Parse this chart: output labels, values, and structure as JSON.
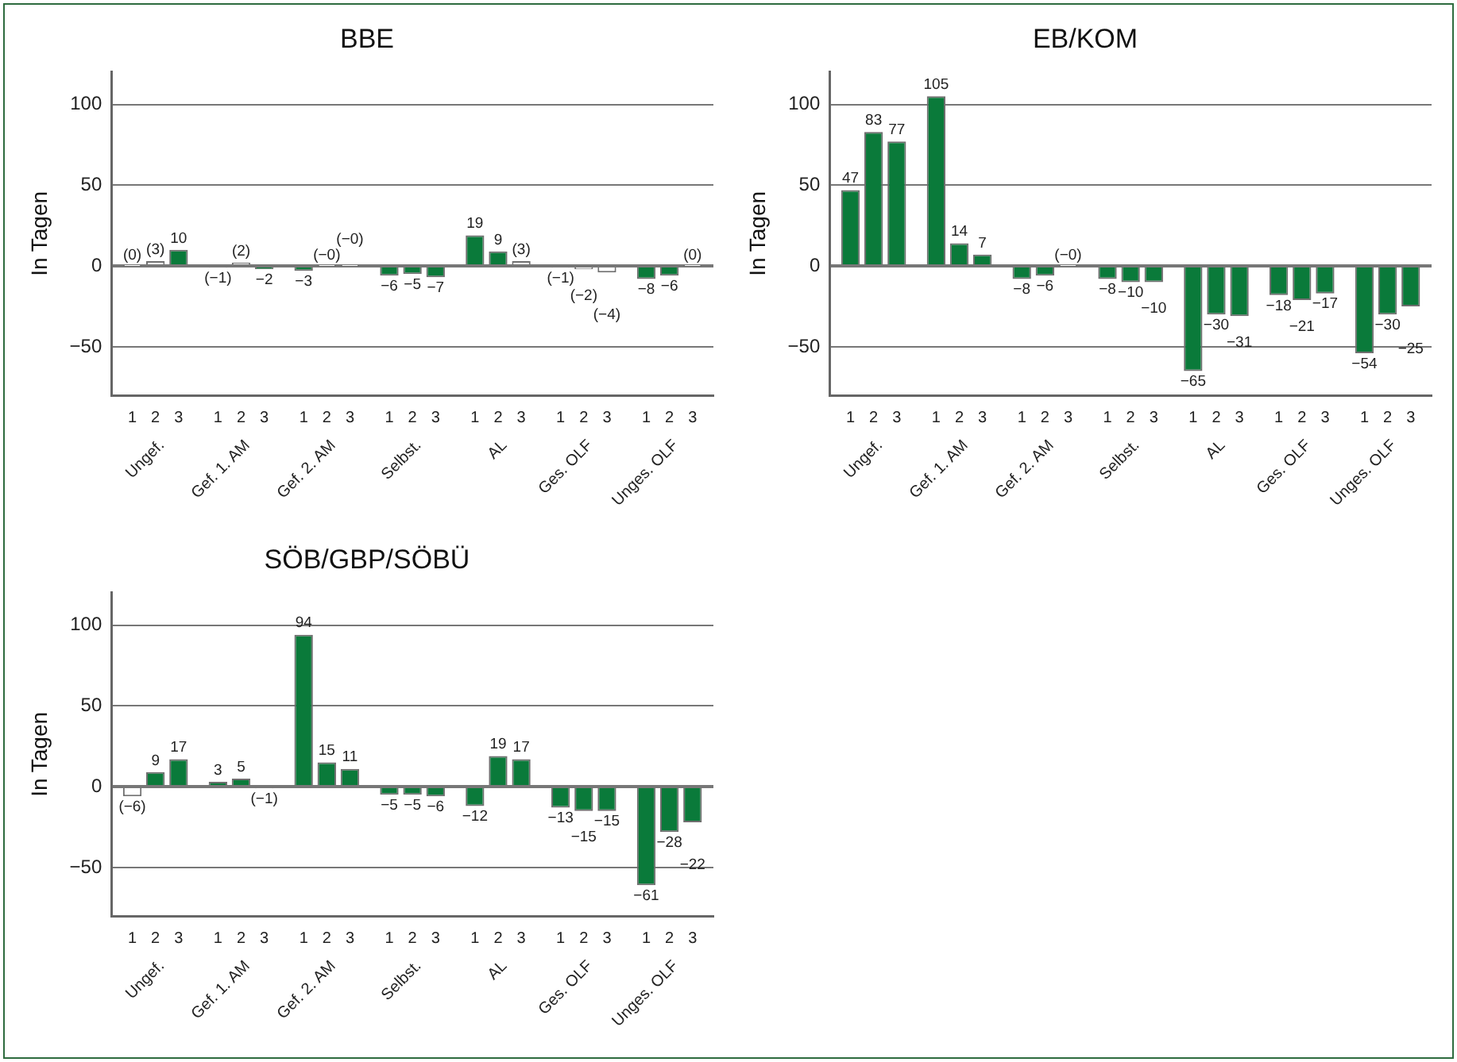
{
  "chart_data": [
    {
      "type": "bar",
      "title": "BBE",
      "ylabel": "In Tagen",
      "categories": [
        "1",
        "2",
        "3",
        "1",
        "2",
        "3",
        "1",
        "2",
        "3",
        "1",
        "2",
        "3",
        "1",
        "2",
        "3",
        "1",
        "2",
        "3",
        "1",
        "2",
        "3"
      ],
      "annotations": [
        "Ungef.",
        "Gef. 1. AM",
        "Gef. 2. AM",
        "Selbst.",
        "AL",
        "Ges. OLF",
        "Unges. OLF"
      ],
      "ylim": [
        -80,
        120
      ],
      "yticks": [
        -50,
        0,
        50,
        100
      ],
      "grid": "y",
      "values": [
        0,
        3,
        10,
        -1,
        2,
        -2,
        -3,
        0,
        0,
        -6,
        -5,
        -7,
        19,
        9,
        3,
        -1,
        -2,
        -4,
        -8,
        -6,
        0
      ],
      "colors": [
        "#ffffff",
        "#ffffff",
        "#0a7a3a",
        "#ffffff",
        "#ffffff",
        "#0a7a3a",
        "#0a7a3a",
        "#ffffff",
        "#ffffff",
        "#0a7a3a",
        "#0a7a3a",
        "#0a7a3a",
        "#0a7a3a",
        "#0a7a3a",
        "#ffffff",
        "#ffffff",
        "#ffffff",
        "#ffffff",
        "#0a7a3a",
        "#0a7a3a",
        "#ffffff"
      ],
      "value_labels": [
        "(0)",
        "(3)",
        "10",
        "(−1)",
        "(2)",
        "−2",
        "−3",
        "(−0)",
        "(−0)",
        "−6",
        "−5",
        "−7",
        "19",
        "9",
        "(3)",
        "(−1)",
        "(−2)",
        "(−4)",
        "−8",
        "−6",
        "(0)"
      ]
    },
    {
      "type": "bar",
      "title": "EB/KOM",
      "ylabel": "In Tagen",
      "categories": [
        "1",
        "2",
        "3",
        "1",
        "2",
        "3",
        "1",
        "2",
        "3",
        "1",
        "2",
        "3",
        "1",
        "2",
        "3",
        "1",
        "2",
        "3",
        "1",
        "2",
        "3"
      ],
      "annotations": [
        "Ungef.",
        "Gef. 1. AM",
        "Gef. 2. AM",
        "Selbst.",
        "AL",
        "Ges. OLF",
        "Unges. OLF"
      ],
      "ylim": [
        -80,
        120
      ],
      "yticks": [
        -50,
        0,
        50,
        100
      ],
      "grid": "y",
      "values": [
        47,
        83,
        77,
        105,
        14,
        7,
        -8,
        -6,
        0,
        -8,
        -10,
        -10,
        -65,
        -30,
        -31,
        -18,
        -21,
        -17,
        -54,
        -30,
        -25
      ],
      "colors": [
        "#0a7a3a",
        "#0a7a3a",
        "#0a7a3a",
        "#0a7a3a",
        "#0a7a3a",
        "#0a7a3a",
        "#0a7a3a",
        "#0a7a3a",
        "#ffffff",
        "#0a7a3a",
        "#0a7a3a",
        "#0a7a3a",
        "#0a7a3a",
        "#0a7a3a",
        "#0a7a3a",
        "#0a7a3a",
        "#0a7a3a",
        "#0a7a3a",
        "#0a7a3a",
        "#0a7a3a",
        "#0a7a3a"
      ],
      "value_labels": [
        "47",
        "83",
        "77",
        "105",
        "14",
        "7",
        "−8",
        "−6",
        "(−0)",
        "−8",
        "−10",
        "−10",
        "−65",
        "−30",
        "−31",
        "−18",
        "−21",
        "−17",
        "−54",
        "−30",
        "−25"
      ]
    },
    {
      "type": "bar",
      "title": "SÖB/GBP/SÖBÜ",
      "ylabel": "In Tagen",
      "categories": [
        "1",
        "2",
        "3",
        "1",
        "2",
        "3",
        "1",
        "2",
        "3",
        "1",
        "2",
        "3",
        "1",
        "2",
        "3",
        "1",
        "2",
        "3",
        "1",
        "2",
        "3"
      ],
      "annotations": [
        "Ungef.",
        "Gef. 1. AM",
        "Gef. 2. AM",
        "Selbst.",
        "AL",
        "Ges. OLF",
        "Unges. OLF"
      ],
      "ylim": [
        -80,
        120
      ],
      "yticks": [
        -50,
        0,
        50,
        100
      ],
      "grid": "y",
      "values": [
        -6,
        9,
        17,
        3,
        5,
        -1,
        94,
        15,
        11,
        -5,
        -5,
        -6,
        -12,
        19,
        17,
        -13,
        -15,
        -15,
        -61,
        -28,
        -22
      ],
      "colors": [
        "#ffffff",
        "#0a7a3a",
        "#0a7a3a",
        "#0a7a3a",
        "#0a7a3a",
        "#ffffff",
        "#0a7a3a",
        "#0a7a3a",
        "#0a7a3a",
        "#0a7a3a",
        "#0a7a3a",
        "#0a7a3a",
        "#0a7a3a",
        "#0a7a3a",
        "#0a7a3a",
        "#0a7a3a",
        "#0a7a3a",
        "#0a7a3a",
        "#0a7a3a",
        "#0a7a3a",
        "#0a7a3a"
      ],
      "value_labels": [
        "(−6)",
        "9",
        "17",
        "3",
        "5",
        "(−1)",
        "94",
        "15",
        "11",
        "−5",
        "−5",
        "−6",
        "−12",
        "19",
        "17",
        "−13",
        "−15",
        "−15",
        "−61",
        "−28",
        "−22"
      ]
    }
  ]
}
